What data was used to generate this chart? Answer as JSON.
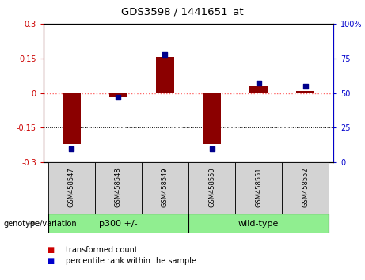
{
  "title": "GDS3598 / 1441651_at",
  "samples": [
    "GSM458547",
    "GSM458548",
    "GSM458549",
    "GSM458550",
    "GSM458551",
    "GSM458552"
  ],
  "red_values": [
    -0.222,
    -0.02,
    0.155,
    -0.222,
    0.03,
    0.01
  ],
  "blue_values": [
    10,
    47,
    78,
    10,
    57,
    55
  ],
  "ylim_left": [
    -0.3,
    0.3
  ],
  "ylim_right": [
    0,
    100
  ],
  "yticks_left": [
    -0.3,
    -0.15,
    0,
    0.15,
    0.3
  ],
  "yticks_right": [
    0,
    25,
    50,
    75,
    100
  ],
  "ytick_labels_left": [
    "-0.3",
    "-0.15",
    "0",
    "0.15",
    "0.3"
  ],
  "ytick_labels_right": [
    "0",
    "25",
    "50",
    "75",
    "100%"
  ],
  "group_label": "genotype/variation",
  "group_p300_label": "p300 +/-",
  "group_wt_label": "wild-type",
  "group_color": "#90EE90",
  "bar_color": "#8B0000",
  "dot_color": "#00008B",
  "bar_width": 0.4,
  "dot_size": 25,
  "hline_color": "#FF6666",
  "grid_color": "#000000",
  "legend_items": [
    {
      "label": "transformed count",
      "color": "#CC0000"
    },
    {
      "label": "percentile rank within the sample",
      "color": "#0000CC"
    }
  ],
  "tick_color_left": "#CC0000",
  "tick_color_right": "#0000CC",
  "sample_bg": "#D3D3D3",
  "fig_width": 4.61,
  "fig_height": 3.54,
  "dpi": 100
}
